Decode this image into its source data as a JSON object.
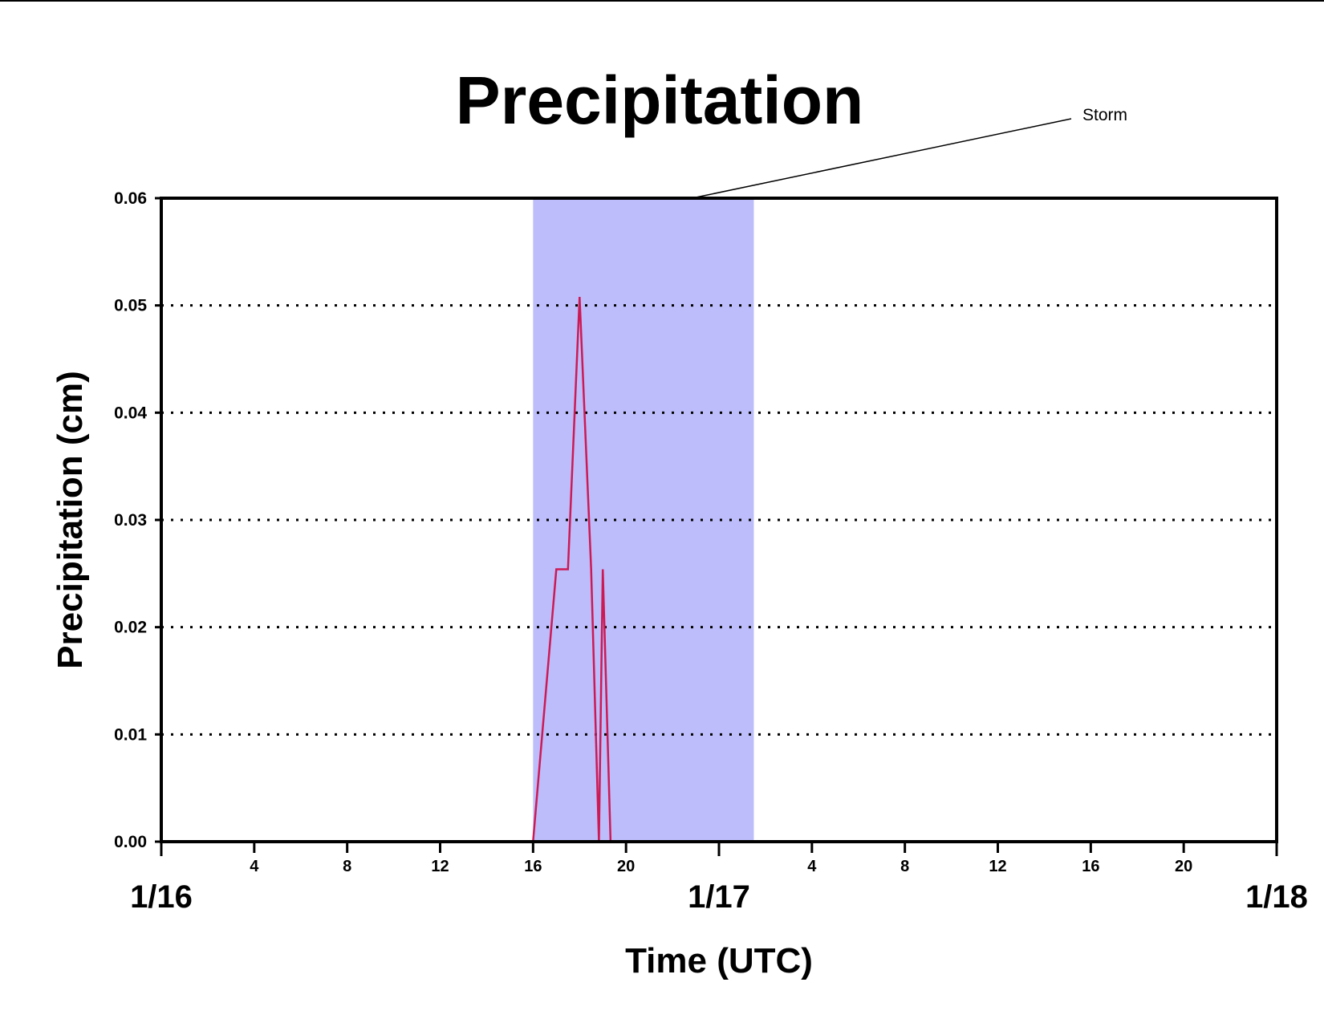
{
  "chart_data": {
    "type": "line",
    "title": "Precipitation",
    "xlabel": "Time (UTC)",
    "ylabel": "Precipitation (cm)",
    "ylim": [
      0,
      0.06
    ],
    "yticks": [
      "0.00",
      "0.01",
      "0.02",
      "0.03",
      "0.04",
      "0.05",
      "0.06"
    ],
    "xlim": [
      "1/16 00:00",
      "1/18 00:00"
    ],
    "hour_ticks": [
      "4",
      "8",
      "12",
      "16",
      "20",
      "4",
      "8",
      "12",
      "16",
      "20"
    ],
    "date_labels": [
      "1/16",
      "1/17",
      "1/18"
    ],
    "grid": "horizontal-dotted",
    "highlight": {
      "label": "Storm",
      "start": "1/16 16:00",
      "end": "1/17 01:30",
      "color": "#bdbdfb"
    },
    "series": [
      {
        "color": "#cc1a55",
        "points": [
          {
            "x": "1/16 00:00",
            "y": 0.0
          },
          {
            "x": "1/16 16:00",
            "y": 0.0
          },
          {
            "x": "1/16 16:30",
            "y": 0.0127
          },
          {
            "x": "1/16 17:00",
            "y": 0.0254
          },
          {
            "x": "1/16 17:30",
            "y": 0.0254
          },
          {
            "x": "1/16 18:00",
            "y": 0.0508
          },
          {
            "x": "1/16 18:30",
            "y": 0.0254
          },
          {
            "x": "1/16 18:50",
            "y": 0.0
          },
          {
            "x": "1/16 19:00",
            "y": 0.0254
          },
          {
            "x": "1/16 19:20",
            "y": 0.0
          },
          {
            "x": "1/18 00:00",
            "y": 0.0
          }
        ]
      }
    ]
  }
}
